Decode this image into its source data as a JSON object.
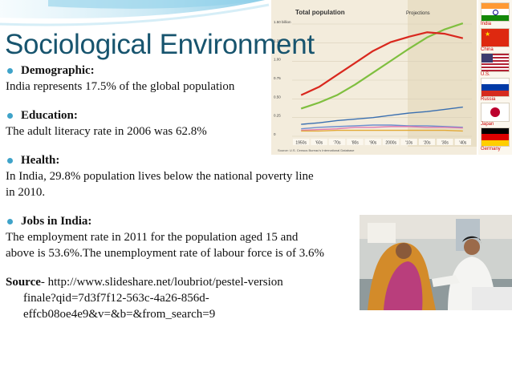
{
  "slide": {
    "title": "Sociological Environment",
    "sections": [
      {
        "heading": "Demographic:",
        "lines": [
          "India represents 17.5% of the global population"
        ]
      },
      {
        "heading": "Education:",
        "lines": [
          "The adult literacy rate in 2006 was 62.8%"
        ]
      },
      {
        "heading": "Health:",
        "lines": [
          "In India, 29.8% population lives below the national poverty line",
          "in 2010."
        ]
      },
      {
        "heading": "Jobs in India:",
        "lines": [
          "The employment rate in 2011 for the population aged 15 and",
          "above is 53.6%.The unemployment rate of labour force is of 3.6%"
        ]
      }
    ],
    "source": {
      "label": "Source",
      "line1": "- http://www.slideshare.net/loubriot/pestel-version",
      "line2": "finale?qid=7d3f7f12-563c-4a26-856d-effcb08oe4e9&v=&b=&from_search=9"
    }
  },
  "figure": {
    "title": "Total population",
    "projections_label": "Projections",
    "footnote": "Source: U.S. Census Bureau's International Database",
    "chart_data": {
      "type": "line",
      "title": "Total population",
      "x": [
        "1950s",
        "'60s",
        "'70s",
        "'80s",
        "'90s",
        "2000s",
        "'10s",
        "'20s",
        "'30s",
        "'40s"
      ],
      "ytick_labels": [
        "0",
        "0.25",
        "0.50",
        "0.75",
        "1.00",
        "1.25",
        "1.50 billion"
      ],
      "ylim": [
        0,
        1.5
      ],
      "series": [
        {
          "name": "India",
          "color": "#7fbf3f",
          "values": [
            0.37,
            0.45,
            0.55,
            0.69,
            0.85,
            1.01,
            1.17,
            1.32,
            1.43,
            1.51
          ]
        },
        {
          "name": "China",
          "color": "#d9281e",
          "values": [
            0.55,
            0.66,
            0.82,
            0.98,
            1.14,
            1.26,
            1.33,
            1.39,
            1.37,
            1.31
          ]
        },
        {
          "name": "U.S.",
          "color": "#3a6fb0",
          "values": [
            0.16,
            0.18,
            0.21,
            0.23,
            0.25,
            0.28,
            0.31,
            0.33,
            0.36,
            0.39
          ]
        },
        {
          "name": "Russia",
          "color": "#6c8fcf",
          "values": [
            0.1,
            0.12,
            0.13,
            0.14,
            0.15,
            0.15,
            0.14,
            0.14,
            0.13,
            0.12
          ]
        },
        {
          "name": "Japan",
          "color": "#e07ab0",
          "values": [
            0.08,
            0.09,
            0.1,
            0.12,
            0.12,
            0.13,
            0.13,
            0.12,
            0.12,
            0.11
          ]
        },
        {
          "name": "Germany",
          "color": "#e3a935",
          "values": [
            0.07,
            0.07,
            0.08,
            0.08,
            0.08,
            0.08,
            0.08,
            0.08,
            0.08,
            0.07
          ]
        }
      ]
    },
    "flags": [
      {
        "name": "India",
        "icon": "india-flag"
      },
      {
        "name": "China",
        "icon": "china-flag"
      },
      {
        "name": "U.S.",
        "icon": "us-flag"
      },
      {
        "name": "Russia",
        "icon": "russia-flag"
      },
      {
        "name": "Japan",
        "icon": "japan-flag"
      },
      {
        "name": "Germany",
        "icon": "germany-flag"
      }
    ]
  }
}
